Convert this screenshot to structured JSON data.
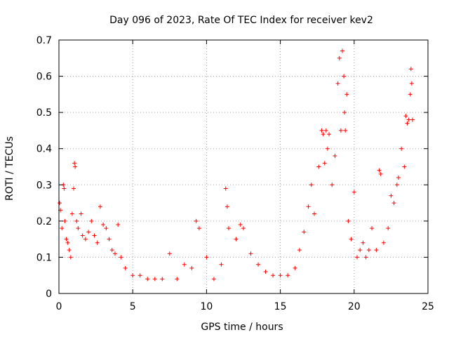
{
  "chart_data": {
    "type": "scatter",
    "title": "Day 096 of 2023, Rate Of TEC Index for receiver kev2",
    "xlabel": "GPS time / hours",
    "ylabel": "ROTI / TECUs",
    "xlim": [
      0,
      25
    ],
    "ylim": [
      0,
      0.7
    ],
    "xticks": [
      "0",
      "5",
      "10",
      "15",
      "20",
      "25"
    ],
    "yticks": [
      "0",
      "0.1",
      "0.2",
      "0.3",
      "0.4",
      "0.5",
      "0.6",
      "0.7"
    ],
    "grid": true,
    "marker": "+",
    "series": [
      {
        "color": "#ff0000",
        "points": [
          [
            0.05,
            0.25
          ],
          [
            0.1,
            0.23
          ],
          [
            0.2,
            0.18
          ],
          [
            0.3,
            0.3
          ],
          [
            0.35,
            0.29
          ],
          [
            0.4,
            0.2
          ],
          [
            0.5,
            0.15
          ],
          [
            0.6,
            0.14
          ],
          [
            0.7,
            0.12
          ],
          [
            0.8,
            0.1
          ],
          [
            0.9,
            0.22
          ],
          [
            1.0,
            0.29
          ],
          [
            1.05,
            0.36
          ],
          [
            1.1,
            0.35
          ],
          [
            1.2,
            0.2
          ],
          [
            1.3,
            0.18
          ],
          [
            1.5,
            0.22
          ],
          [
            1.6,
            0.16
          ],
          [
            1.8,
            0.15
          ],
          [
            2.0,
            0.17
          ],
          [
            2.2,
            0.2
          ],
          [
            2.4,
            0.16
          ],
          [
            2.6,
            0.14
          ],
          [
            2.8,
            0.24
          ],
          [
            3.0,
            0.19
          ],
          [
            3.2,
            0.18
          ],
          [
            3.4,
            0.15
          ],
          [
            3.6,
            0.12
          ],
          [
            3.8,
            0.11
          ],
          [
            4.0,
            0.19
          ],
          [
            4.2,
            0.1
          ],
          [
            4.5,
            0.07
          ],
          [
            5.0,
            0.05
          ],
          [
            5.5,
            0.05
          ],
          [
            6.0,
            0.04
          ],
          [
            6.5,
            0.04
          ],
          [
            7.0,
            0.04
          ],
          [
            7.5,
            0.11
          ],
          [
            8.0,
            0.04
          ],
          [
            8.5,
            0.08
          ],
          [
            9.0,
            0.07
          ],
          [
            9.3,
            0.2
          ],
          [
            9.5,
            0.18
          ],
          [
            10.0,
            0.1
          ],
          [
            10.5,
            0.04
          ],
          [
            11.0,
            0.08
          ],
          [
            11.3,
            0.29
          ],
          [
            11.4,
            0.24
          ],
          [
            11.5,
            0.18
          ],
          [
            12.0,
            0.15
          ],
          [
            12.3,
            0.19
          ],
          [
            12.5,
            0.18
          ],
          [
            13.0,
            0.11
          ],
          [
            13.5,
            0.08
          ],
          [
            14.0,
            0.06
          ],
          [
            14.5,
            0.05
          ],
          [
            15.0,
            0.05
          ],
          [
            15.5,
            0.05
          ],
          [
            16.0,
            0.07
          ],
          [
            16.3,
            0.12
          ],
          [
            16.6,
            0.17
          ],
          [
            16.9,
            0.24
          ],
          [
            17.1,
            0.3
          ],
          [
            17.3,
            0.22
          ],
          [
            17.6,
            0.35
          ],
          [
            17.8,
            0.45
          ],
          [
            17.9,
            0.44
          ],
          [
            18.0,
            0.36
          ],
          [
            18.1,
            0.45
          ],
          [
            18.2,
            0.4
          ],
          [
            18.3,
            0.44
          ],
          [
            18.5,
            0.3
          ],
          [
            18.7,
            0.38
          ],
          [
            18.9,
            0.58
          ],
          [
            19.0,
            0.65
          ],
          [
            19.1,
            0.45
          ],
          [
            19.2,
            0.67
          ],
          [
            19.3,
            0.6
          ],
          [
            19.35,
            0.5
          ],
          [
            19.4,
            0.45
          ],
          [
            19.5,
            0.55
          ],
          [
            19.6,
            0.2
          ],
          [
            19.8,
            0.15
          ],
          [
            20.0,
            0.28
          ],
          [
            20.2,
            0.1
          ],
          [
            20.4,
            0.12
          ],
          [
            20.6,
            0.14
          ],
          [
            20.8,
            0.1
          ],
          [
            21.0,
            0.12
          ],
          [
            21.2,
            0.18
          ],
          [
            21.5,
            0.12
          ],
          [
            21.7,
            0.34
          ],
          [
            21.8,
            0.33
          ],
          [
            22.0,
            0.14
          ],
          [
            22.3,
            0.18
          ],
          [
            22.5,
            0.27
          ],
          [
            22.7,
            0.25
          ],
          [
            22.9,
            0.3
          ],
          [
            23.0,
            0.32
          ],
          [
            23.2,
            0.4
          ],
          [
            23.4,
            0.35
          ],
          [
            23.5,
            0.49
          ],
          [
            23.6,
            0.47
          ],
          [
            23.7,
            0.48
          ],
          [
            23.8,
            0.55
          ],
          [
            23.85,
            0.62
          ],
          [
            23.9,
            0.58
          ],
          [
            23.95,
            0.48
          ]
        ]
      }
    ]
  }
}
